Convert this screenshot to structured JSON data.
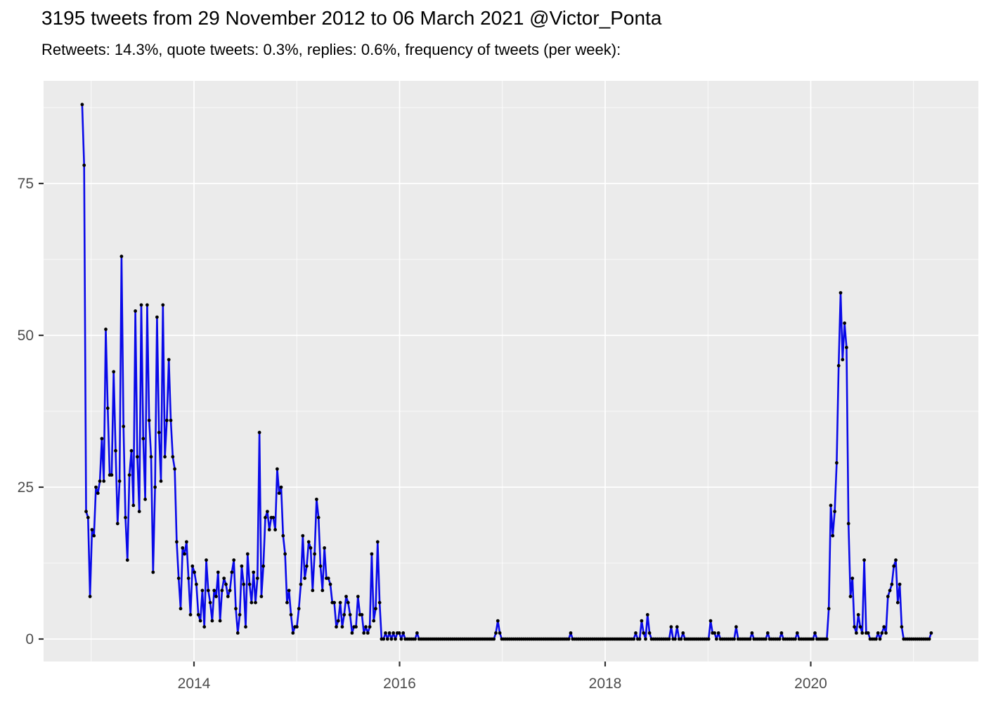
{
  "header": {
    "title": "3195 tweets from 29 November 2012 to 06 March 2021 @Victor_Ponta",
    "subtitle": "Retweets: 14.3%, quote tweets: 0.3%, replies: 0.6%, frequency of tweets (per week):"
  },
  "chart_data": {
    "type": "line",
    "title": "3195 tweets from 29 November 2012 to 06 March 2021 @Victor_Ponta",
    "subtitle": "Retweets: 14.3%, quote tweets: 0.3%, replies: 0.6%, frequency of tweets (per week):",
    "xlabel": "",
    "ylabel": "",
    "x_unit": "week",
    "start_date": "2012-11-29",
    "end_date": "2021-03-06",
    "x_tick_labels": [
      "2014",
      "2016",
      "2018",
      "2020"
    ],
    "x_tick_years": [
      2014,
      2016,
      2018,
      2020
    ],
    "x_minor_years": [
      2013,
      2015,
      2017,
      2019,
      2021
    ],
    "y_tick_labels": [
      "0",
      "25",
      "50",
      "75"
    ],
    "y_major_ticks": [
      0,
      25,
      50,
      75
    ],
    "y_minor_ticks": [
      12.5,
      37.5,
      62.5,
      87.5
    ],
    "ylim": [
      0,
      92
    ],
    "grid": "on",
    "legend": "none",
    "panel_background": "#EBEBEB",
    "gridline_color": "#FFFFFF",
    "line_color": "#0909E8",
    "point_color": "#000000",
    "axis_text_color": "#4D4D4D",
    "tick_mark_color": "#333333",
    "series": [
      {
        "name": "tweets per week",
        "values": [
          88,
          78,
          21,
          20,
          7,
          18,
          17,
          25,
          24,
          26,
          33,
          26,
          51,
          38,
          27,
          27,
          44,
          31,
          19,
          26,
          63,
          35,
          20,
          13,
          27,
          31,
          22,
          54,
          30,
          21,
          55,
          33,
          23,
          55,
          36,
          30,
          11,
          25,
          53,
          34,
          26,
          55,
          30,
          36,
          46,
          36,
          30,
          28,
          16,
          10,
          5,
          15,
          14,
          16,
          10,
          4,
          12,
          11,
          9,
          4,
          3,
          8,
          2,
          13,
          8,
          6,
          3,
          8,
          7,
          11,
          3,
          8,
          10,
          9,
          7,
          8,
          11,
          13,
          5,
          1,
          4,
          12,
          9,
          2,
          14,
          9,
          6,
          11,
          6,
          10,
          34,
          7,
          12,
          20,
          21,
          18,
          20,
          20,
          18,
          28,
          24,
          25,
          17,
          14,
          6,
          8,
          4,
          1,
          2,
          2,
          5,
          9,
          17,
          10,
          12,
          16,
          15,
          8,
          14,
          23,
          20,
          12,
          8,
          15,
          10,
          10,
          9,
          6,
          6,
          2,
          3,
          6,
          2,
          4,
          7,
          6,
          4,
          1,
          2,
          2,
          7,
          4,
          4,
          1,
          2,
          1,
          2,
          14,
          3,
          5,
          16,
          6,
          0,
          0,
          1,
          0,
          1,
          0,
          1,
          0,
          1,
          1,
          0,
          1,
          0,
          0,
          0,
          0,
          0,
          0,
          1,
          0,
          0,
          0,
          0,
          0,
          0,
          0,
          0,
          0,
          0,
          0,
          0,
          0,
          0,
          0,
          0,
          0,
          0,
          0,
          0,
          0,
          0,
          0,
          0,
          0,
          0,
          0,
          0,
          0,
          0,
          0,
          0,
          0,
          0,
          0,
          0,
          0,
          0,
          0,
          1,
          3,
          1,
          0,
          0,
          0,
          0,
          0,
          0,
          0,
          0,
          0,
          0,
          0,
          0,
          0,
          0,
          0,
          0,
          0,
          0,
          0,
          0,
          0,
          0,
          0,
          0,
          0,
          0,
          0,
          0,
          0,
          0,
          0,
          0,
          0,
          0,
          0,
          1,
          0,
          0,
          0,
          0,
          0,
          0,
          0,
          0,
          0,
          0,
          0,
          0,
          0,
          0,
          0,
          0,
          0,
          0,
          0,
          0,
          0,
          0,
          0,
          0,
          0,
          0,
          0,
          0,
          0,
          0,
          0,
          0,
          1,
          0,
          0,
          3,
          1,
          0,
          4,
          1,
          0,
          0,
          0,
          0,
          0,
          0,
          0,
          0,
          0,
          0,
          2,
          0,
          0,
          2,
          0,
          0,
          1,
          0,
          0,
          0,
          0,
          0,
          0,
          0,
          0,
          0,
          0,
          0,
          0,
          0,
          3,
          1,
          1,
          0,
          1,
          0,
          0,
          0,
          0,
          0,
          0,
          0,
          0,
          2,
          0,
          0,
          0,
          0,
          0,
          0,
          0,
          1,
          0,
          0,
          0,
          0,
          0,
          0,
          0,
          1,
          0,
          0,
          0,
          0,
          0,
          0,
          1,
          0,
          0,
          0,
          0,
          0,
          0,
          0,
          1,
          0,
          0,
          0,
          0,
          0,
          0,
          0,
          0,
          1,
          0,
          0,
          0,
          0,
          0,
          0,
          5,
          22,
          17,
          21,
          29,
          45,
          57,
          46,
          52,
          48,
          19,
          7,
          10,
          2,
          1,
          4,
          2,
          1,
          13,
          1,
          1,
          0,
          0,
          0,
          0,
          1,
          0,
          1,
          2,
          1,
          7,
          8,
          9,
          12,
          13,
          6,
          9,
          2,
          0,
          0,
          0,
          0,
          0,
          0,
          0,
          0,
          0,
          0,
          0,
          0,
          0,
          0,
          1
        ]
      }
    ],
    "annotations": [],
    "legend_position": "none"
  }
}
